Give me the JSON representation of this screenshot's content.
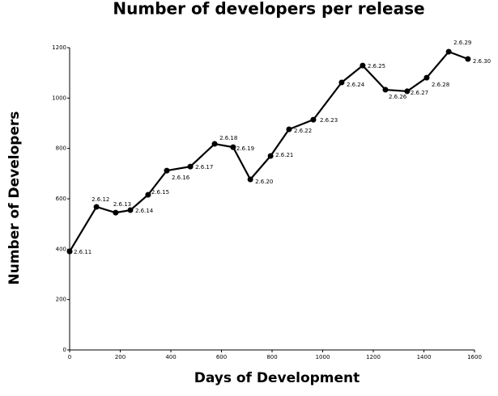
{
  "chart_data": {
    "type": "line",
    "title": "Number of developers per release",
    "x_label": "Days of Development",
    "y_label": "Number of Developers",
    "x": [
      0,
      106,
      182,
      240,
      310,
      384,
      477,
      573,
      646,
      714,
      794,
      867,
      963,
      1075,
      1158,
      1248,
      1334,
      1411,
      1498,
      1574
    ],
    "series": [
      {
        "name": "Developers",
        "color": "#000000",
        "values": [
          391,
          568,
          545,
          555,
          616,
          712,
          728,
          818,
          805,
          677,
          770,
          876,
          914,
          1062,
          1129,
          1033,
          1027,
          1081,
          1184,
          1155
        ],
        "point_labels": [
          "2.6.11",
          "2.6.12",
          "2.6.13",
          "2.6.14",
          "2.6.15",
          "2.6.16",
          "2.6.17",
          "2.6.18",
          "2.6.19",
          "2.6.20",
          "2.6.21",
          "2.6.22",
          "2.6.23",
          "2.6.24",
          "2.6.25",
          "2.6.26",
          "2.6.27",
          "2.6.28",
          "2.6.29",
          "2.6.30"
        ]
      }
    ],
    "xlim": [
      0,
      1600
    ],
    "xticks": [
      0,
      200,
      400,
      600,
      800,
      1000,
      1200,
      1400,
      1600
    ],
    "ylim": [
      0,
      1200
    ],
    "yticks": [
      0,
      200,
      400,
      600,
      800,
      1000,
      1200
    ],
    "grid": false
  }
}
